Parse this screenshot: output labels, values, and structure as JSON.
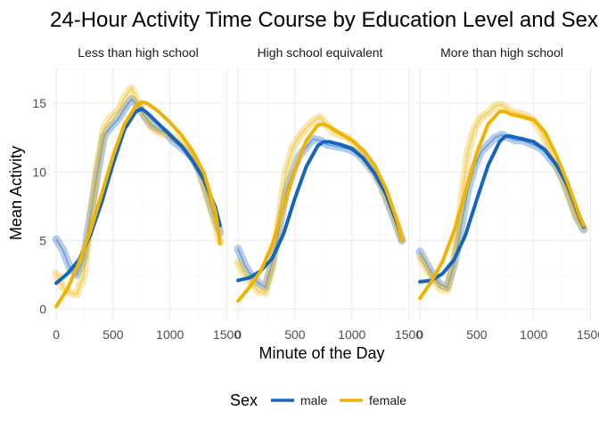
{
  "chart_data": {
    "type": "line",
    "title": "24-Hour Activity Time Course by Education Level and Sex",
    "xlabel": "Minute of the Day",
    "ylabel": "Mean Activity",
    "xlim": [
      -40,
      1480
    ],
    "ylim": [
      -0.8,
      17.6
    ],
    "x_ticks": [
      0,
      500,
      1000,
      1500
    ],
    "x_tick_labels": [
      "0",
      "500",
      "1000",
      "1500"
    ],
    "y_ticks": [
      0,
      5,
      10,
      15
    ],
    "y_tick_labels": [
      "0",
      "5",
      "10",
      "15"
    ],
    "grid": true,
    "legend": {
      "title": "Sex",
      "position": "bottom",
      "entries": [
        {
          "label": "male",
          "color": "#1565c0"
        },
        {
          "label": "female",
          "color": "#f0b400"
        }
      ]
    },
    "x_smooth": [
      0,
      100,
      200,
      300,
      400,
      500,
      600,
      700,
      750,
      800,
      900,
      1000,
      1100,
      1200,
      1300,
      1400,
      1440
    ],
    "x_raw": [
      0,
      60,
      120,
      180,
      240,
      300,
      360,
      420,
      480,
      540,
      600,
      660,
      720,
      780,
      840,
      900,
      960,
      1020,
      1080,
      1140,
      1200,
      1260,
      1320,
      1380,
      1440
    ],
    "panels": [
      {
        "label": "Less than high school",
        "series": [
          {
            "name": "male",
            "color": "#1565c0",
            "smooth": [
              1.9,
              2.6,
              3.6,
              5.4,
              7.8,
              10.6,
              13.1,
              14.4,
              14.6,
              14.3,
              13.5,
              12.7,
              11.9,
              10.8,
              9.4,
              7.4,
              6.1
            ],
            "raw": [
              5.1,
              4.3,
              3.0,
              2.5,
              3.6,
              6.8,
              9.8,
              12.6,
              13.3,
              13.8,
              14.6,
              15.3,
              14.8,
              14.0,
              13.4,
              13.1,
              12.9,
              12.3,
              11.9,
              11.5,
              11.0,
              10.1,
              8.6,
              7.0,
              5.6
            ]
          },
          {
            "name": "female",
            "color": "#f0b400",
            "smooth": [
              0.2,
              1.5,
              3.4,
              5.7,
              8.4,
              11.2,
              13.5,
              14.8,
              15.1,
              15.0,
              14.4,
              13.6,
              12.7,
              11.5,
              9.9,
              7.1,
              4.8
            ],
            "raw": [
              2.6,
              1.6,
              1.2,
              1.1,
              2.4,
              6.2,
              10.5,
              13.2,
              14.0,
              14.4,
              15.4,
              16.1,
              15.0,
              14.1,
              13.2,
              12.9,
              12.8,
              12.6,
              12.3,
              11.8,
              11.0,
              10.0,
              8.4,
              6.8,
              4.9
            ]
          }
        ]
      },
      {
        "label": "High school equivalent",
        "series": [
          {
            "name": "male",
            "color": "#1565c0",
            "smooth": [
              2.1,
              2.3,
              2.8,
              3.7,
              5.5,
              8.1,
              10.4,
              11.9,
              12.2,
              12.2,
              12.0,
              11.7,
              11.0,
              9.9,
              8.4,
              6.2,
              5.0
            ],
            "raw": [
              4.4,
              3.2,
              2.4,
              1.9,
              1.6,
              3.4,
              5.8,
              8.5,
              10.0,
              11.2,
              11.8,
              12.4,
              12.3,
              12.0,
              11.9,
              11.8,
              11.7,
              11.5,
              11.1,
              10.5,
              9.9,
              9.0,
              7.7,
              6.4,
              5.0
            ]
          },
          {
            "name": "female",
            "color": "#f0b400",
            "smooth": [
              0.6,
              1.6,
              2.8,
              4.7,
              7.4,
              10.2,
              12.3,
              13.4,
              13.5,
              13.3,
              12.8,
              12.3,
              11.6,
              10.5,
              8.8,
              6.4,
              5.0
            ],
            "raw": [
              3.4,
              2.5,
              1.9,
              1.3,
              1.2,
              3.1,
              6.6,
              10.0,
              11.8,
              12.6,
              13.2,
              13.7,
              14.0,
              13.4,
              12.9,
              12.7,
              12.5,
              12.1,
              11.4,
              10.7,
              10.0,
              9.1,
              7.9,
              6.6,
              5.1
            ]
          }
        ]
      },
      {
        "label": "More than high school",
        "series": [
          {
            "name": "male",
            "color": "#1565c0",
            "smooth": [
              2.0,
              2.1,
              2.6,
              3.6,
              5.4,
              8.0,
              10.5,
              12.2,
              12.6,
              12.6,
              12.4,
              12.2,
              11.6,
              10.5,
              9.0,
              6.8,
              6.0
            ],
            "raw": [
              4.2,
              3.3,
              2.4,
              1.8,
              1.6,
              3.2,
              5.9,
              8.6,
              10.4,
              11.5,
              12.0,
              12.5,
              12.7,
              12.5,
              12.3,
              12.3,
              12.1,
              11.9,
              11.6,
              11.0,
              10.4,
              9.4,
              8.1,
              6.7,
              5.8
            ]
          },
          {
            "name": "female",
            "color": "#f0b400",
            "smooth": [
              0.8,
              2.0,
              3.5,
              5.7,
              8.5,
              11.4,
              13.5,
              14.4,
              14.4,
              14.2,
              14.0,
              13.8,
              12.9,
              11.2,
              9.2,
              6.9,
              6.1
            ],
            "raw": [
              3.8,
              2.9,
              2.2,
              1.5,
              1.4,
              3.7,
              7.5,
              11.4,
              13.2,
              14.0,
              14.3,
              14.8,
              14.9,
              14.5,
              14.3,
              14.2,
              14.0,
              13.6,
              12.7,
              11.6,
              10.5,
              9.4,
              8.0,
              6.6,
              5.9
            ]
          }
        ]
      }
    ]
  }
}
